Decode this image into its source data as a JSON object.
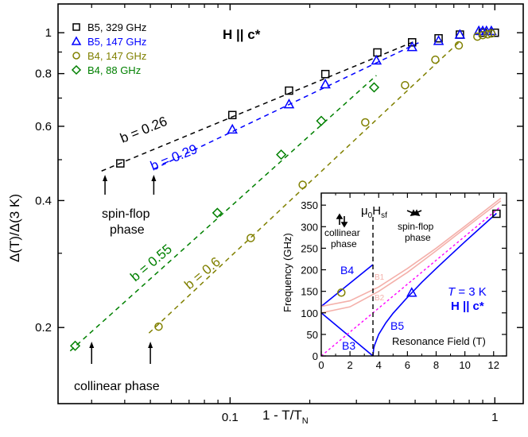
{
  "chart_data": [
    {
      "type": "scatter",
      "xscale": "log",
      "yscale": "log",
      "xlabel": "1 - T/T",
      "xlabel_sub": "N",
      "ylabel": "Δ(T)/Δ(3 K)",
      "xlim": [
        0.0224,
        1.28
      ],
      "ylim": [
        0.132,
        1.17
      ],
      "xticks": [
        {
          "v": 0.1,
          "label": "0.1"
        },
        {
          "v": 1,
          "label": "1"
        }
      ],
      "xminor": [
        0.03,
        0.04,
        0.05,
        0.06,
        0.07,
        0.08,
        0.09,
        0.2,
        0.3,
        0.4,
        0.5,
        0.6,
        0.7,
        0.8,
        0.9
      ],
      "yticks": [
        {
          "v": 0.2,
          "label": "0.2"
        },
        {
          "v": 0.4,
          "label": "0.4"
        },
        {
          "v": 0.6,
          "label": "0.6"
        },
        {
          "v": 0.8,
          "label": "0.8"
        },
        {
          "v": 1,
          "label": "1"
        }
      ],
      "yminor": [
        0.3,
        0.5,
        0.7,
        0.9
      ],
      "annotation_title": "H || c*",
      "legend_position": "top-left",
      "series": [
        {
          "name": "B5, 329 GHz",
          "marker": "square",
          "color": "#000000",
          "x": [
            0.0385,
            0.102,
            0.167,
            0.229,
            0.36,
            0.487,
            0.613,
            0.738,
            0.9,
            1.0
          ],
          "y": [
            0.49,
            0.638,
            0.729,
            0.798,
            0.898,
            0.949,
            0.97,
            0.99,
            1.0,
            1.0
          ]
        },
        {
          "name": "B5, 147 GHz",
          "marker": "triangle",
          "color": "#0000ff",
          "x": [
            0.102,
            0.167,
            0.229,
            0.357,
            0.487,
            0.613,
            0.738,
            0.87,
            0.9,
            0.93,
            0.97
          ],
          "y": [
            0.59,
            0.677,
            0.755,
            0.86,
            0.925,
            0.957,
            0.99,
            1.01,
            1.01,
            1.01,
            1.01
          ]
        },
        {
          "name": "B4, 147 GHz",
          "marker": "circle",
          "color": "#808000",
          "x": [
            0.0537,
            0.1197,
            0.188,
            0.324,
            0.458,
            0.596,
            0.731,
            0.859,
            0.9,
            0.94,
            0.97
          ],
          "y": [
            0.201,
            0.326,
            0.436,
            0.613,
            0.751,
            0.863,
            0.933,
            0.979,
            0.987,
            0.991,
            0.996
          ]
        },
        {
          "name": "B4, 88 GHz",
          "marker": "diamond",
          "color": "#008000",
          "x": [
            0.026,
            0.0895,
            0.156,
            0.221,
            0.35
          ],
          "y": [
            0.181,
            0.374,
            0.514,
            0.618,
            0.742
          ]
        }
      ],
      "fit_lines": [
        {
          "label": "b = 0.26",
          "color": "#000000",
          "x": [
            0.0327,
            0.5
          ],
          "y": [
            0.47,
            0.955
          ]
        },
        {
          "label": "b = 0.29",
          "color": "#0000ff",
          "x": [
            0.0515,
            0.519
          ],
          "y": [
            0.475,
            0.949
          ]
        },
        {
          "label": "b = 0.55",
          "color": "#008000",
          "x": [
            0.0249,
            0.357
          ],
          "y": [
            0.176,
            0.792
          ]
        },
        {
          "label": "b = 0.6",
          "color": "#808000",
          "x": [
            0.0494,
            0.731
          ],
          "y": [
            0.194,
            0.949
          ]
        }
      ],
      "annotations": {
        "spin_flop": [
          "spin-flop",
          "phase"
        ],
        "collinear": "collinear phase",
        "spin_flop_arrows_x": [
          0.0337,
          0.0515
        ],
        "collinear_arrows_x": [
          0.03,
          0.05
        ]
      }
    },
    {
      "type": "line",
      "xlabel": "Resonance Field (T)",
      "ylabel": "Frequency (GHz)",
      "xlim": [
        0,
        12.9
      ],
      "ylim": [
        0,
        378
      ],
      "xticks": [
        {
          "v": 0,
          "label": "0"
        },
        {
          "v": 2,
          "label": "2"
        },
        {
          "v": 4,
          "label": "4"
        },
        {
          "v": 6,
          "label": "6"
        },
        {
          "v": 8,
          "label": "8"
        },
        {
          "v": 10,
          "label": "10"
        },
        {
          "v": 12,
          "label": "12"
        }
      ],
      "yticks": [
        {
          "v": 0,
          "label": "0"
        },
        {
          "v": 50,
          "label": "50"
        },
        {
          "v": 100,
          "label": "100"
        },
        {
          "v": 150,
          "label": "150"
        },
        {
          "v": 200,
          "label": "200"
        },
        {
          "v": 250,
          "label": "250"
        },
        {
          "v": 300,
          "label": "300"
        },
        {
          "v": 350,
          "label": "350"
        }
      ],
      "spin_flop_field": 3.6,
      "spin_flop_label": "μ",
      "spin_flop_label_sub0": "0",
      "spin_flop_label_H": "H",
      "spin_flop_label_sub": "sf",
      "collinear_label": [
        "collinear",
        "phase"
      ],
      "spinflop_label": [
        "spin-flop",
        "phase"
      ],
      "temperature_label_T": "T",
      "temperature_label_rest": " = 3 K",
      "field_label": "H || c*",
      "curves": [
        {
          "name": "B4",
          "color": "#0000ff",
          "points": [
            [
              0,
              115
            ],
            [
              3.6,
              212
            ]
          ]
        },
        {
          "name": "B3",
          "color": "#0000ff",
          "points": [
            [
              0,
              100
            ],
            [
              3.6,
              0
            ]
          ]
        },
        {
          "name": "B5",
          "color": "#0000ff",
          "points": [
            [
              3.6,
              0
            ],
            [
              3.65,
              17
            ],
            [
              3.7,
              24
            ],
            [
              4,
              50
            ],
            [
              4.5,
              77
            ],
            [
              5,
              99
            ],
            [
              6,
              136
            ],
            [
              7,
              171
            ],
            [
              8,
              203
            ],
            [
              9,
              234
            ],
            [
              10,
              265
            ],
            [
              11,
              295
            ],
            [
              12.2,
              331
            ]
          ]
        },
        {
          "name": "B1",
          "color": "#f4b0aa",
          "points": [
            [
              0,
              115
            ],
            [
              2,
              128
            ],
            [
              4,
              160
            ],
            [
              6,
              203
            ],
            [
              8,
              250
            ],
            [
              10,
              301
            ],
            [
              12.5,
              366
            ]
          ]
        },
        {
          "name": "B2",
          "color": "#f4b0aa",
          "points": [
            [
              0,
              100
            ],
            [
              2,
              114
            ],
            [
              4,
              150
            ],
            [
              6,
              194
            ],
            [
              8,
              244
            ],
            [
              10,
              296
            ],
            [
              12.5,
              360
            ]
          ]
        },
        {
          "name": "",
          "color": "#ff00ff",
          "dotted": true,
          "points": [
            [
              0,
              0
            ],
            [
              12.5,
              347
            ]
          ]
        }
      ],
      "points": [
        {
          "marker": "circle",
          "color": "#808000",
          "x": 1.4,
          "y": 147
        },
        {
          "marker": "triangle",
          "color": "#0000ff",
          "x": 6.3,
          "y": 147
        },
        {
          "marker": "square",
          "color": "#000000",
          "x": 12.2,
          "y": 330
        }
      ]
    }
  ]
}
